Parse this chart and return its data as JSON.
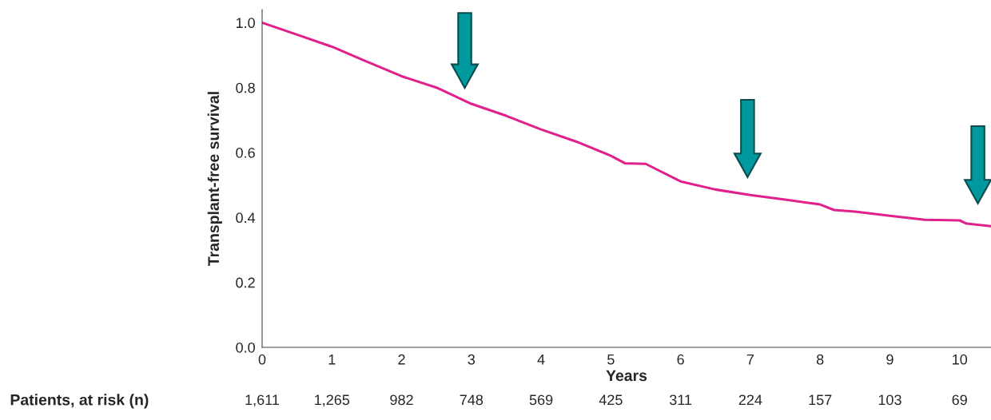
{
  "chart_data": {
    "type": "line",
    "xlabel": "Years",
    "ylabel": "Transplant-free survival",
    "series": [
      {
        "color": "#e0208c",
        "x": [
          0,
          0.5,
          1,
          1.5,
          2,
          2.5,
          3,
          3.5,
          4,
          4.5,
          5,
          5.2,
          5.5,
          6,
          6.5,
          7,
          7.5,
          8,
          8.2,
          8.5,
          9,
          9.5,
          10,
          10.1,
          10.45
        ],
        "values": [
          1.0,
          0.963,
          0.926,
          0.88,
          0.835,
          0.8,
          0.75,
          0.713,
          0.671,
          0.634,
          0.59,
          0.567,
          0.565,
          0.511,
          0.486,
          0.469,
          0.455,
          0.44,
          0.423,
          0.418,
          0.405,
          0.393,
          0.391,
          0.381,
          0.373
        ]
      }
    ],
    "xlim": [
      0,
      10.45
    ],
    "ylim": [
      0,
      1.04
    ],
    "xticks": [
      0,
      1,
      2,
      3,
      4,
      5,
      6,
      7,
      8,
      9,
      10
    ],
    "yticks": [
      {
        "value": 0,
        "label": "0.0"
      },
      0.2,
      0.4,
      0.6,
      0.8,
      {
        "value": 1,
        "label": "1.0"
      }
    ],
    "grid": false,
    "legend": false,
    "annotations": [
      "Patients, at risk (n)",
      "1,611",
      "1,265",
      "982",
      "748",
      "569",
      "425",
      "311",
      "224",
      "157",
      "103",
      "69"
    ]
  }
}
